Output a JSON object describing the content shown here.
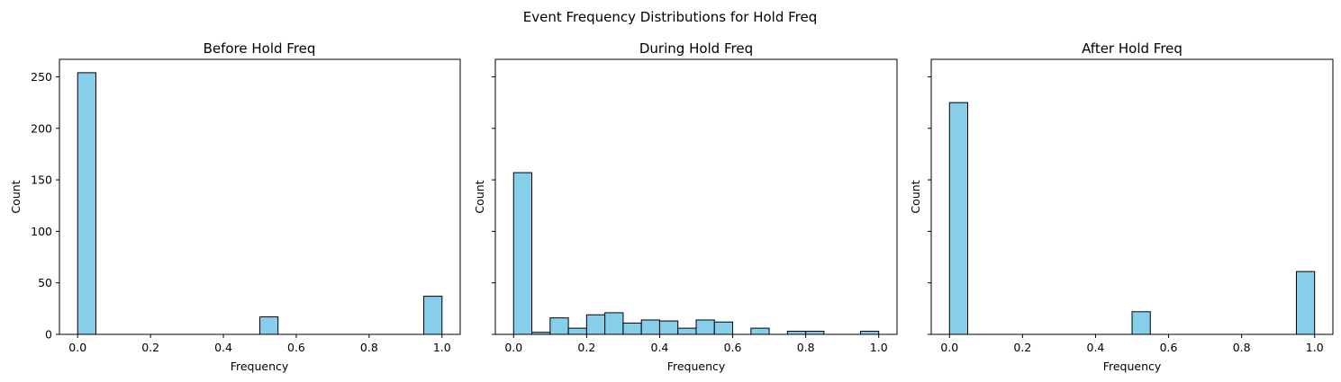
{
  "figure": {
    "suptitle": "Event Frequency Distributions for Hold Freq",
    "bar_color": "#87ceeb",
    "edge_color": "#000000"
  },
  "chart_data": [
    {
      "type": "bar",
      "title": "Before Hold Freq",
      "xlabel": "Frequency",
      "ylabel": "Count",
      "bin_width": 0.05,
      "bins_start": [
        0.0,
        0.05,
        0.1,
        0.15,
        0.2,
        0.25,
        0.3,
        0.35,
        0.4,
        0.45,
        0.5,
        0.55,
        0.6,
        0.65,
        0.7,
        0.75,
        0.8,
        0.85,
        0.9,
        0.95
      ],
      "values": [
        254,
        0,
        0,
        0,
        0,
        0,
        0,
        0,
        0,
        0,
        17,
        0,
        0,
        0,
        0,
        0,
        0,
        0,
        0,
        37
      ],
      "xlim": [
        -0.05,
        1.05
      ],
      "ylim": [
        0,
        267
      ],
      "xticks": [
        "0.0",
        "0.2",
        "0.4",
        "0.6",
        "0.8",
        "1.0"
      ],
      "yticks": [
        "0",
        "50",
        "100",
        "150",
        "200",
        "250"
      ]
    },
    {
      "type": "bar",
      "title": "During Hold Freq",
      "xlabel": "Frequency",
      "ylabel": "Count",
      "bin_width": 0.05,
      "bins_start": [
        0.0,
        0.05,
        0.1,
        0.15,
        0.2,
        0.25,
        0.3,
        0.35,
        0.4,
        0.45,
        0.5,
        0.55,
        0.6,
        0.65,
        0.7,
        0.75,
        0.8,
        0.85,
        0.9,
        0.95
      ],
      "values": [
        157,
        2,
        16,
        6,
        19,
        21,
        11,
        14,
        13,
        6,
        14,
        12,
        0,
        6,
        0,
        3,
        3,
        0,
        0,
        3
      ],
      "xlim": [
        -0.05,
        1.05
      ],
      "ylim": [
        0,
        267
      ],
      "xticks": [
        "0.0",
        "0.2",
        "0.4",
        "0.6",
        "0.8",
        "1.0"
      ],
      "yticks": []
    },
    {
      "type": "bar",
      "title": "After Hold Freq",
      "xlabel": "Frequency",
      "ylabel": "Count",
      "bin_width": 0.05,
      "bins_start": [
        0.0,
        0.05,
        0.1,
        0.15,
        0.2,
        0.25,
        0.3,
        0.35,
        0.4,
        0.45,
        0.5,
        0.55,
        0.6,
        0.65,
        0.7,
        0.75,
        0.8,
        0.85,
        0.9,
        0.95
      ],
      "values": [
        225,
        0,
        0,
        0,
        0,
        0,
        0,
        0,
        0,
        0,
        22,
        0,
        0,
        0,
        0,
        0,
        0,
        0,
        0,
        61
      ],
      "xlim": [
        -0.05,
        1.05
      ],
      "ylim": [
        0,
        267
      ],
      "xticks": [
        "0.0",
        "0.2",
        "0.4",
        "0.6",
        "0.8",
        "1.0"
      ],
      "yticks": []
    }
  ]
}
